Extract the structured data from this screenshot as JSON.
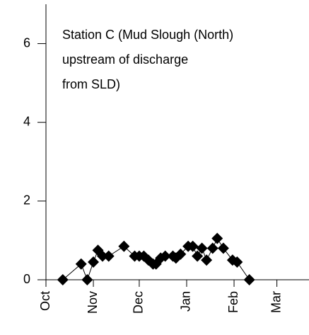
{
  "chart_data": {
    "type": "line",
    "annotation": [
      "Station C (Mud Slough (North)",
      "upstream of discharge",
      "from SLD)"
    ],
    "x": [
      11,
      23,
      27,
      31,
      34,
      37,
      41,
      51,
      58,
      61,
      64,
      67,
      70,
      72,
      75,
      78,
      83,
      85,
      88,
      93,
      96,
      99,
      102,
      105,
      109,
      112,
      116,
      122,
      125,
      133
    ],
    "series": [
      {
        "color": "#000000",
        "values": [
          0,
          0.4,
          0,
          0.45,
          0.75,
          0.6,
          0.6,
          0.85,
          0.6,
          0.6,
          0.6,
          0.5,
          0.4,
          0.4,
          0.55,
          0.6,
          0.6,
          0.55,
          0.65,
          0.85,
          0.85,
          0.6,
          0.8,
          0.5,
          0.8,
          1.05,
          0.8,
          0.5,
          0.45,
          0
        ]
      }
    ],
    "xlim": [
      0,
      172
    ],
    "xticks": [
      {
        "value": 0,
        "label": "Oct"
      },
      {
        "value": 31,
        "label": "Nov"
      },
      {
        "value": 61,
        "label": "Dec"
      },
      {
        "value": 92,
        "label": "Jan"
      },
      {
        "value": 123,
        "label": "Feb"
      },
      {
        "value": 151,
        "label": "Mar"
      }
    ],
    "ylim": [
      0,
      7
    ],
    "yticks": [
      0,
      2,
      4,
      6
    ]
  }
}
